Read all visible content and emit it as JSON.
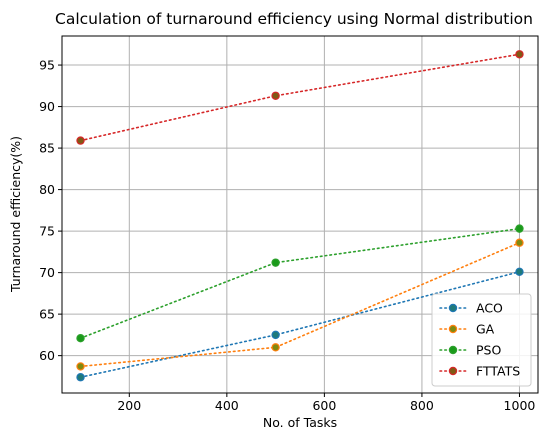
{
  "chart_data": {
    "type": "line",
    "title": "Calculation of turnaround efficiency using Normal distribution",
    "xlabel": "No. of Tasks",
    "ylabel": "Turnaround efficiency(%)",
    "xlim": [
      62,
      1038
    ],
    "ylim": [
      55.5,
      98.5
    ],
    "xticks": [
      200,
      400,
      600,
      800,
      1000
    ],
    "yticks": [
      60,
      65,
      70,
      75,
      80,
      85,
      90,
      95
    ],
    "grid": true,
    "legend_position": "lower-right",
    "x": [
      100,
      500,
      1000
    ],
    "series": [
      {
        "name": "ACO",
        "values": [
          57.4,
          62.5,
          70.1
        ],
        "color": "#1f77b4",
        "marker_face": "#1f7a7a"
      },
      {
        "name": "GA",
        "values": [
          58.7,
          61.0,
          73.6
        ],
        "color": "#ff7f0e",
        "marker_face": "#7f8a10"
      },
      {
        "name": "PSO",
        "values": [
          62.1,
          71.2,
          75.3
        ],
        "color": "#2ca02c",
        "marker_face": "#1a9a1a"
      },
      {
        "name": "FTTATS",
        "values": [
          85.9,
          91.3,
          96.3
        ],
        "color": "#d62728",
        "marker_face": "#7f5a14"
      }
    ]
  }
}
